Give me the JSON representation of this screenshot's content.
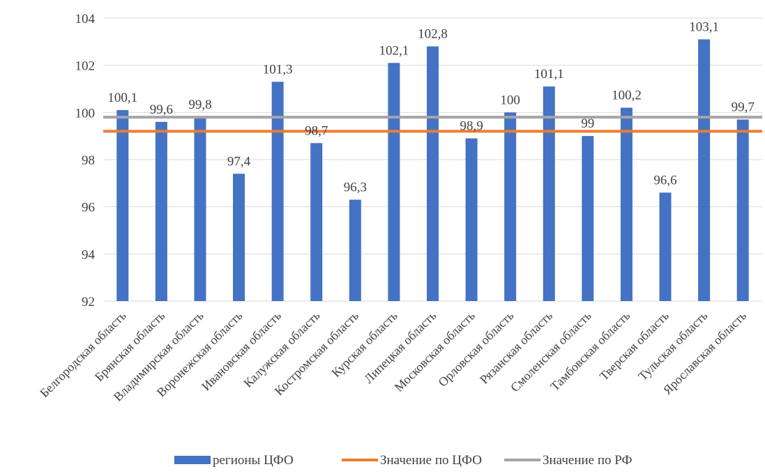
{
  "chart_data": {
    "type": "bar",
    "categories": [
      "Белгородская область",
      "Брянская область",
      "Владимирская область",
      "Воронежская область",
      "Ивановская область",
      "Калужская область",
      "Костромская область",
      "Курская область",
      "Липецкая область",
      "Московская область",
      "Орловская область",
      "Рязанская область",
      "Смоленская область",
      "Тамбовская область",
      "Тверская область",
      "Тульская область",
      "Ярославская область"
    ],
    "series": [
      {
        "name": "регионы ЦФО",
        "kind": "bar",
        "color": "#4472c4",
        "values": [
          100.1,
          99.6,
          99.8,
          97.4,
          101.3,
          98.7,
          96.3,
          102.1,
          102.8,
          98.9,
          100,
          101.1,
          99,
          100.2,
          96.6,
          103.1,
          99.7
        ],
        "labels": [
          "100,1",
          "99,6",
          "99,8",
          "97,4",
          "101,3",
          "98,7",
          "96,3",
          "102,1",
          "102,8",
          "98,9",
          "100",
          "101,1",
          "99",
          "100,2",
          "96,6",
          "103,1",
          "99,7"
        ]
      },
      {
        "name": "Значение по ЦФО",
        "kind": "line",
        "color": "#ed7d31",
        "value": 99.2
      },
      {
        "name": "Значение по РФ",
        "kind": "line",
        "color": "#a5a5a5",
        "value": 99.8
      }
    ],
    "ylim": [
      92,
      104
    ],
    "yticks": [
      92,
      94,
      96,
      98,
      100,
      102,
      104
    ],
    "grid": true,
    "legend": "bottom",
    "title": "",
    "xlabel": "",
    "ylabel": ""
  }
}
